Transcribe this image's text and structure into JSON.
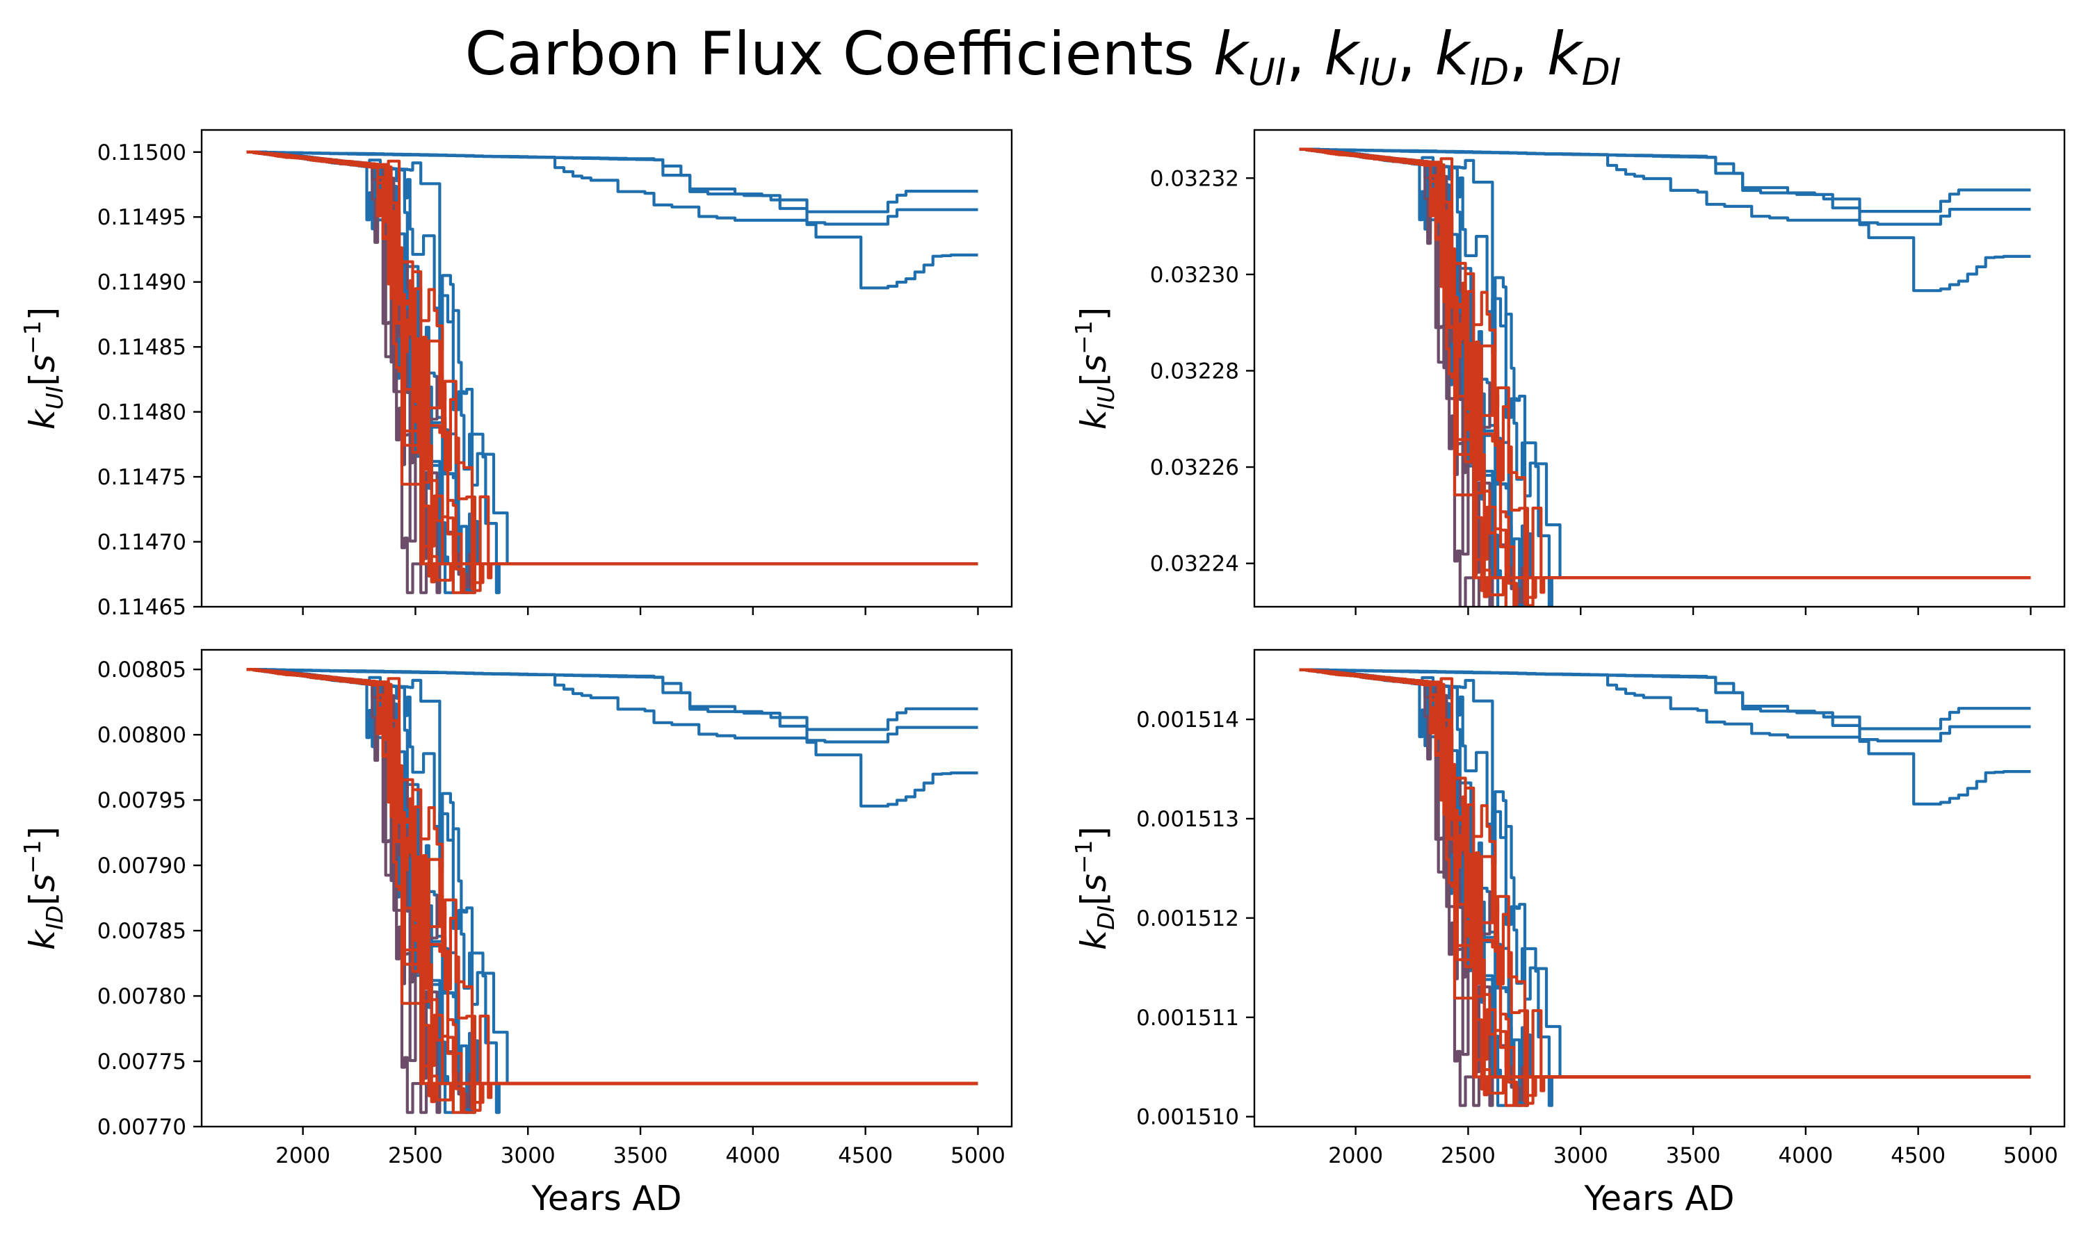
{
  "figure": {
    "title_text": "Carbon Flux Coefficients ",
    "title_symbols": [
      {
        "base": "k",
        "sub": "UI"
      },
      {
        "base": "k",
        "sub": "IU"
      },
      {
        "base": "k",
        "sub": "ID"
      },
      {
        "base": "k",
        "sub": "DI"
      }
    ],
    "title_separator": ", "
  },
  "colors": {
    "blue": "#1f6fae",
    "mid": "#6b4d6a",
    "red": "#d03a1a",
    "axis": "#000000"
  },
  "chart_data": [
    {
      "type": "line",
      "panel": "top-left",
      "ylabel_base": "k",
      "ylabel_sub": "UI",
      "ylabel_unit_text": "[s",
      "ylabel_unit_exp": "−1",
      "ylabel_unit_close": "]",
      "xlabel": "",
      "xlim": [
        1550,
        5150
      ],
      "ylim": [
        0.11465,
        0.115017
      ],
      "x_ticks": [
        2000,
        2500,
        3000,
        3500,
        4000,
        4500,
        5000
      ],
      "y_ticks": [
        0.11465,
        0.1147,
        0.11475,
        0.1148,
        0.11485,
        0.1149,
        0.11495,
        0.115
      ],
      "y_tick_labels": [
        "0.11465",
        "0.11470",
        "0.11475",
        "0.11480",
        "0.11485",
        "0.11490",
        "0.11495",
        "0.11500"
      ],
      "x_tick_labels_visible": false,
      "start": 0.115,
      "floor": 0.114683,
      "stable_ends": [
        0.114969,
        0.114955,
        0.114923
      ],
      "grid": false
    },
    {
      "type": "line",
      "panel": "top-right",
      "ylabel_base": "k",
      "ylabel_sub": "IU",
      "ylabel_unit_text": "[s",
      "ylabel_unit_exp": "−1",
      "ylabel_unit_close": "]",
      "xlabel": "",
      "xlim": [
        1550,
        5150
      ],
      "ylim": [
        0.032231,
        0.03233
      ],
      "x_ticks": [
        2000,
        2500,
        3000,
        3500,
        4000,
        4500,
        5000
      ],
      "y_ticks": [
        0.03224,
        0.03226,
        0.03228,
        0.0323,
        0.03232
      ],
      "y_tick_labels": [
        "0.03224",
        "0.03226",
        "0.03228",
        "0.03230",
        "0.03232"
      ],
      "x_tick_labels_visible": false,
      "start": 0.032326,
      "floor": 0.032237,
      "stable_ends": [
        0.032317,
        0.032313,
        0.032304
      ],
      "grid": false
    },
    {
      "type": "line",
      "panel": "bottom-left",
      "ylabel_base": "k",
      "ylabel_sub": "ID",
      "ylabel_unit_text": "[s",
      "ylabel_unit_exp": "−1",
      "ylabel_unit_close": "]",
      "xlabel": "Years AD",
      "xlim": [
        1550,
        5150
      ],
      "ylim": [
        0.0077,
        0.008065
      ],
      "x_ticks": [
        2000,
        2500,
        3000,
        3500,
        4000,
        4500,
        5000
      ],
      "x_tick_labels": [
        "2000",
        "2500",
        "3000",
        "3500",
        "4000",
        "4500",
        "5000"
      ],
      "y_ticks": [
        0.0077,
        0.00775,
        0.0078,
        0.00785,
        0.0079,
        0.00795,
        0.008,
        0.00805
      ],
      "y_tick_labels": [
        "0.00770",
        "0.00775",
        "0.00780",
        "0.00785",
        "0.00790",
        "0.00795",
        "0.00800",
        "0.00805"
      ],
      "x_tick_labels_visible": true,
      "start": 0.00805,
      "floor": 0.007733,
      "stable_ends": [
        0.00802,
        0.008006,
        0.007974
      ],
      "grid": false
    },
    {
      "type": "line",
      "panel": "bottom-right",
      "ylabel_base": "k",
      "ylabel_sub": "DI",
      "ylabel_unit_text": "[s",
      "ylabel_unit_exp": "−1",
      "ylabel_unit_close": "]",
      "xlabel": "Years AD",
      "xlim": [
        1550,
        5150
      ],
      "ylim": [
        0.0015099,
        0.0015147
      ],
      "x_ticks": [
        2000,
        2500,
        3000,
        3500,
        4000,
        4500,
        5000
      ],
      "x_tick_labels": [
        "2000",
        "2500",
        "3000",
        "3500",
        "4000",
        "4500",
        "5000"
      ],
      "y_ticks": [
        0.00151,
        0.001511,
        0.001512,
        0.001513,
        0.001514
      ],
      "y_tick_labels": [
        "0.001510",
        "0.001511",
        "0.001512",
        "0.001513",
        "0.001514"
      ],
      "x_tick_labels_visible": true,
      "start": 0.0015145,
      "floor": 0.0015104,
      "stable_ends": [
        0.0015141,
        0.0015139,
        0.0015135
      ],
      "grid": false
    }
  ]
}
